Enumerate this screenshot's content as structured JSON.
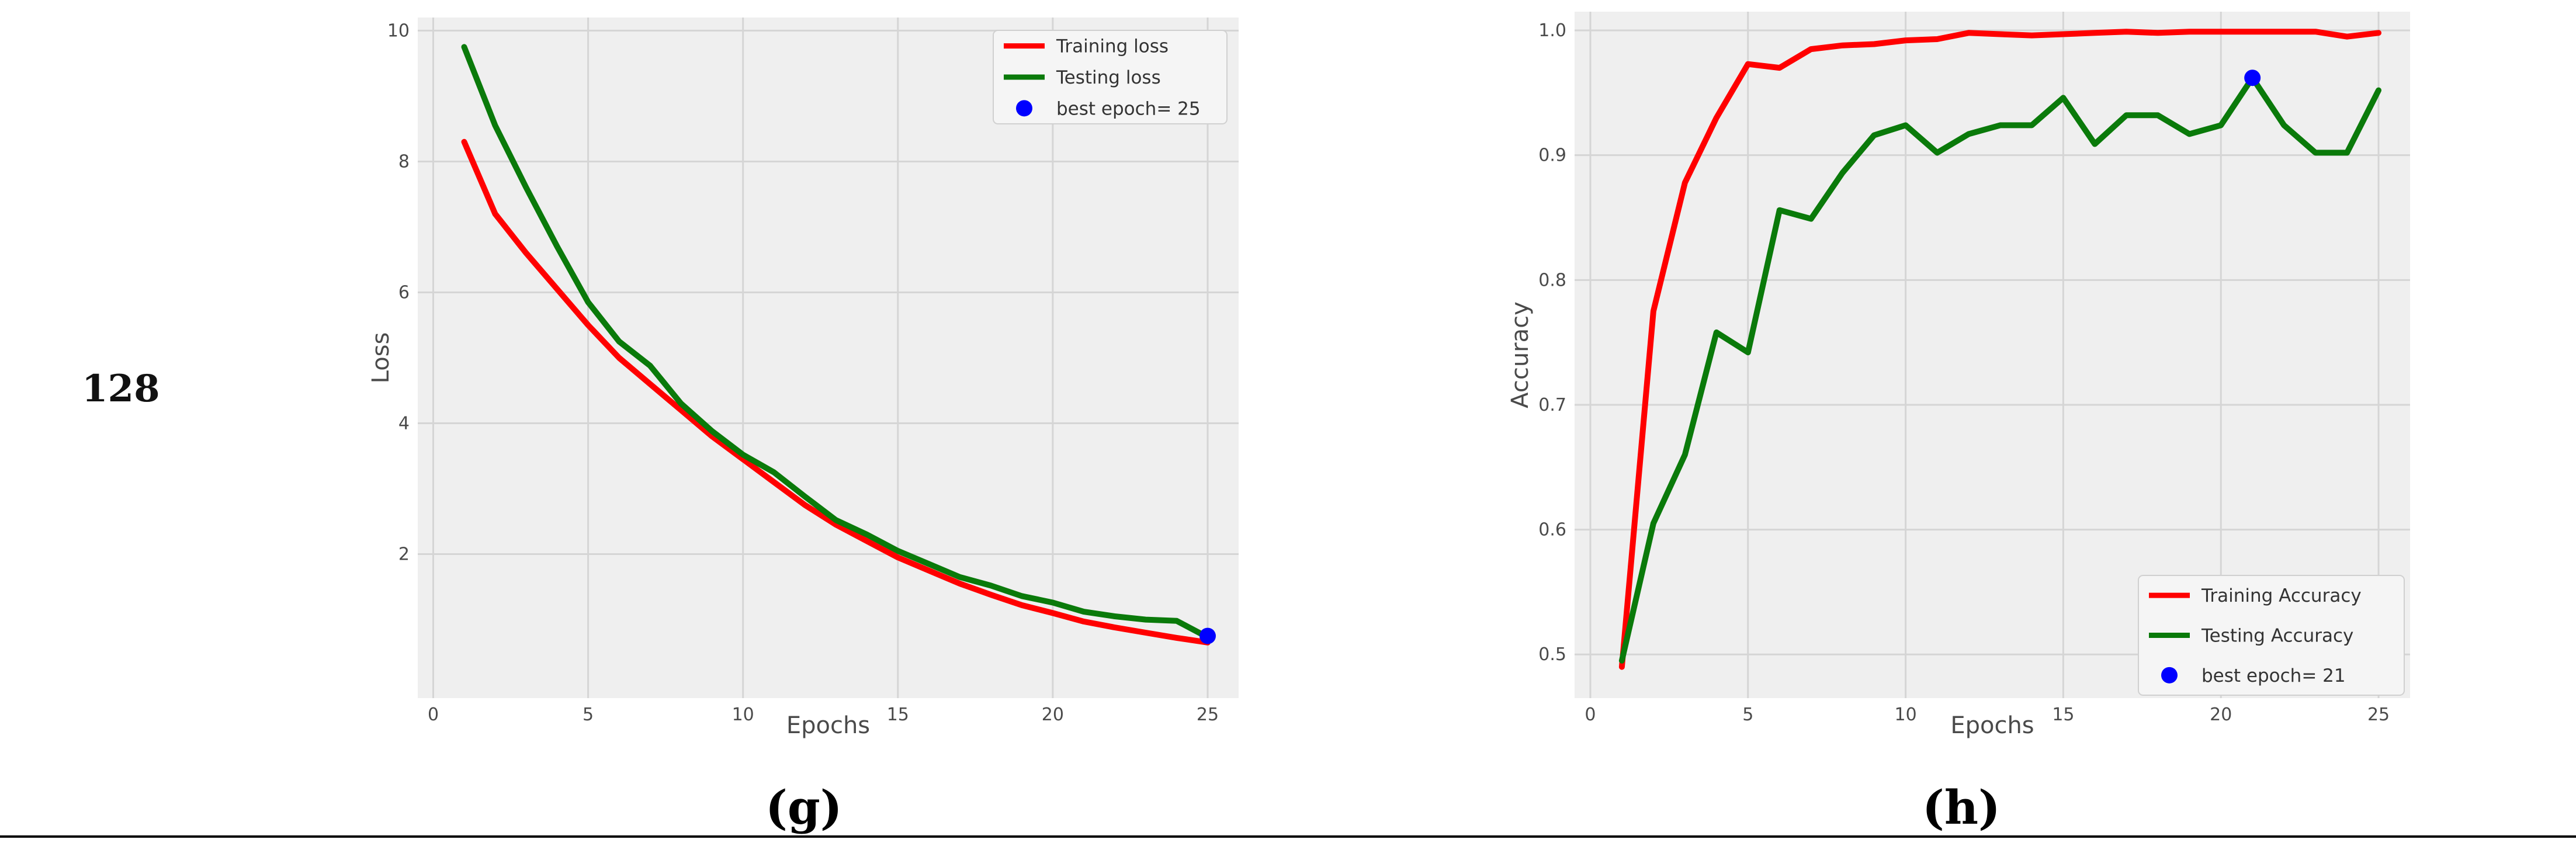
{
  "row_label": "128",
  "panels": [
    "(g)",
    "(h)"
  ],
  "chart_data": [
    {
      "type": "line",
      "xlabel": "Epochs",
      "ylabel": "Loss",
      "xlim": [
        -0.5,
        26
      ],
      "ylim": [
        -0.2,
        10.2
      ],
      "xticks": [
        0,
        5,
        10,
        15,
        20,
        25
      ],
      "yticks": [
        2,
        4,
        6,
        8,
        10
      ],
      "grid": true,
      "legend_position": "top-right",
      "x": [
        1,
        2,
        3,
        4,
        5,
        6,
        7,
        8,
        9,
        10,
        11,
        12,
        13,
        14,
        15,
        16,
        17,
        18,
        19,
        20,
        21,
        22,
        23,
        24,
        25
      ],
      "series": [
        {
          "name": "Training loss",
          "color": "#ff0000",
          "values": [
            8.3,
            7.2,
            6.6,
            6.05,
            5.5,
            5.0,
            4.6,
            4.2,
            3.8,
            3.45,
            3.1,
            2.75,
            2.45,
            2.2,
            1.95,
            1.75,
            1.55,
            1.38,
            1.22,
            1.1,
            0.97,
            0.88,
            0.8,
            0.72,
            0.65
          ]
        },
        {
          "name": "Testing loss",
          "color": "#0a7a0a",
          "values": [
            9.75,
            8.55,
            7.6,
            6.7,
            5.85,
            5.25,
            4.88,
            4.3,
            3.88,
            3.52,
            3.25,
            2.88,
            2.52,
            2.3,
            2.05,
            1.85,
            1.65,
            1.52,
            1.36,
            1.26,
            1.12,
            1.05,
            1.0,
            0.98,
            0.73
          ]
        }
      ],
      "best_point": {
        "name": "best epoch= 25",
        "x": 25,
        "y": 0.75,
        "color": "#0000ff"
      }
    },
    {
      "type": "line",
      "xlabel": "Epochs",
      "ylabel": "Accuracy",
      "xlim": [
        -0.5,
        26
      ],
      "ylim": [
        0.465,
        1.015
      ],
      "xticks": [
        0,
        5,
        10,
        15,
        20,
        25
      ],
      "yticks": [
        0.5,
        0.6,
        0.7,
        0.8,
        0.9,
        1.0
      ],
      "yticklabels": [
        "0.5",
        "0.6",
        "0.7",
        "0.8",
        "0.9",
        "1.0"
      ],
      "grid": true,
      "legend_position": "bottom-right",
      "x": [
        1,
        2,
        3,
        4,
        5,
        6,
        7,
        8,
        9,
        10,
        11,
        12,
        13,
        14,
        15,
        16,
        17,
        18,
        19,
        20,
        21,
        22,
        23,
        24,
        25
      ],
      "series": [
        {
          "name": "Training Accuracy",
          "color": "#ff0000",
          "values": [
            0.49,
            0.775,
            0.878,
            0.93,
            0.973,
            0.97,
            0.985,
            0.988,
            0.989,
            0.992,
            0.993,
            0.998,
            0.997,
            0.996,
            0.997,
            0.998,
            0.999,
            0.998,
            0.999,
            0.999,
            0.999,
            0.999,
            0.999,
            0.995,
            0.998
          ]
        },
        {
          "name": "Testing Accuracy",
          "color": "#0a7a0a",
          "values": [
            0.495,
            0.605,
            0.66,
            0.758,
            0.742,
            0.856,
            0.849,
            0.886,
            0.916,
            0.924,
            0.902,
            0.917,
            0.924,
            0.924,
            0.946,
            0.909,
            0.932,
            0.932,
            0.917,
            0.924,
            0.962,
            0.924,
            0.902,
            0.902,
            0.952
          ]
        }
      ],
      "best_point": {
        "name": "best epoch= 21",
        "x": 21,
        "y": 0.962,
        "color": "#0000ff"
      }
    }
  ]
}
